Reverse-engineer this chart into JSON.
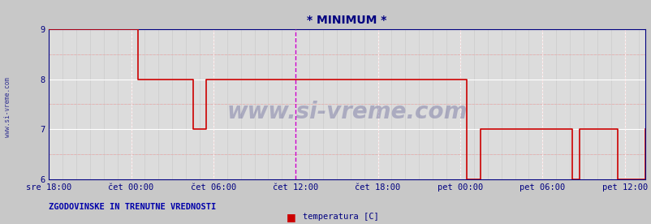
{
  "title": "* MINIMUM *",
  "ylim": [
    6,
    9
  ],
  "yticks": [
    6,
    7,
    8,
    9
  ],
  "fig_bg_color": "#c8c8c8",
  "plot_bg_color": "#dcdcdc",
  "line_color": "#cc0000",
  "vline_color": "#cc00cc",
  "vline_x_h": 18,
  "title_color": "#000080",
  "watermark": "www.si-vreme.com",
  "footer_left": "ZGODOVINSKE IN TRENUTNE VREDNOSTI",
  "legend_label": "temperatura [C]",
  "legend_color": "#cc0000",
  "tick_labels": [
    "sre 18:00",
    "čet 00:00",
    "čet 06:00",
    "čet 12:00",
    "čet 18:00",
    "pet 00:00",
    "pet 06:00",
    "pet 12:00"
  ],
  "tick_hours": [
    0,
    6,
    12,
    18,
    24,
    30,
    36,
    42
  ],
  "xlim": [
    0,
    43.5
  ],
  "step_x_h": [
    0,
    6.5,
    6.5,
    10.5,
    10.5,
    11.5,
    11.5,
    30.5,
    30.5,
    31.5,
    31.5,
    38.2,
    38.2,
    38.7,
    38.7,
    41.5,
    41.5,
    43.5
  ],
  "step_y_v": [
    9.0,
    9.0,
    8.0,
    8.0,
    7.0,
    7.0,
    8.0,
    8.0,
    6.0,
    6.0,
    7.0,
    7.0,
    6.0,
    6.0,
    7.0,
    7.0,
    6.0,
    7.0
  ],
  "grid_major_color": "#ffffff",
  "grid_minor_color": "#c8c8c8",
  "grid_pink_color": "#e8b0b0",
  "side_label": "www.si-vreme.com"
}
